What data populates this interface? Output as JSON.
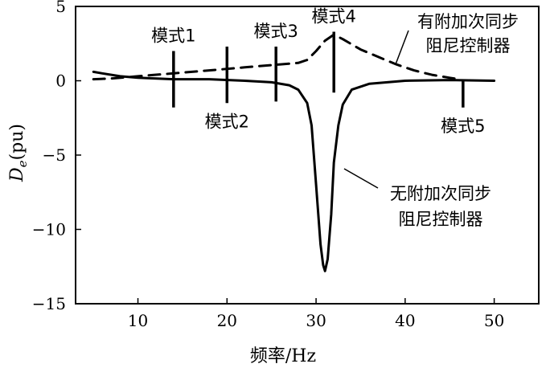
{
  "chart_data": {
    "type": "line",
    "xlabel": "频率/Hz",
    "ylabel": "D",
    "ylabel_sub": "e",
    "ylabel_unit": "(pu)",
    "xlim": [
      3,
      55
    ],
    "ylim": [
      -15,
      5
    ],
    "xticks": [
      10,
      20,
      30,
      40,
      50
    ],
    "yticks": [
      5,
      0,
      -5,
      -10,
      -15
    ],
    "grid": false,
    "series": [
      {
        "name": "有附加次同步阻尼控制器",
        "style": "dashed",
        "x": [
          5,
          7,
          10,
          14,
          18,
          22,
          26,
          28,
          29,
          30,
          31,
          32,
          33,
          35,
          37,
          39,
          41,
          43,
          45,
          46
        ],
        "y": [
          0.1,
          0.15,
          0.3,
          0.5,
          0.7,
          0.9,
          1.1,
          1.2,
          1.4,
          2.0,
          2.7,
          3.1,
          2.8,
          2.1,
          1.6,
          1.1,
          0.7,
          0.4,
          0.2,
          0.1
        ]
      },
      {
        "name": "无附加次同步阻尼控制器",
        "style": "solid",
        "x": [
          5,
          6,
          8,
          10,
          14,
          18,
          22,
          25,
          27,
          28,
          29,
          29.5,
          30,
          30.5,
          30.8,
          31,
          31.3,
          31.7,
          32,
          32.5,
          33,
          34,
          36,
          40,
          45,
          50
        ],
        "y": [
          0.6,
          0.5,
          0.3,
          0.2,
          0.1,
          0.1,
          0.0,
          -0.1,
          -0.3,
          -0.6,
          -1.5,
          -3.0,
          -7.0,
          -11.0,
          -12.4,
          -12.8,
          -12.0,
          -9.0,
          -5.5,
          -3.0,
          -1.6,
          -0.6,
          -0.2,
          0.0,
          0.05,
          0.0
        ]
      }
    ],
    "mode_markers": [
      {
        "label": "模式1",
        "x": 14,
        "y_top": 2.0,
        "y_bottom": -1.8,
        "label_pos": "above"
      },
      {
        "label": "模式2",
        "x": 20,
        "y_top": 2.3,
        "y_bottom": -1.5,
        "label_pos": "below"
      },
      {
        "label": "模式3",
        "x": 25.5,
        "y_top": 2.3,
        "y_bottom": -1.4,
        "label_pos": "above"
      },
      {
        "label": "模式4",
        "x": 32,
        "y_top": 3.3,
        "y_bottom": -0.8,
        "label_pos": "above"
      },
      {
        "label": "模式5",
        "x": 46.5,
        "y_top": 0.1,
        "y_bottom": -1.8,
        "label_pos": "below"
      }
    ],
    "annotations": [
      {
        "lines": [
          "有附加次同步",
          "阻尼控制器"
        ],
        "series_index": 0
      },
      {
        "lines": [
          "无附加次同步",
          "阻尼控制器"
        ],
        "series_index": 1
      }
    ]
  }
}
